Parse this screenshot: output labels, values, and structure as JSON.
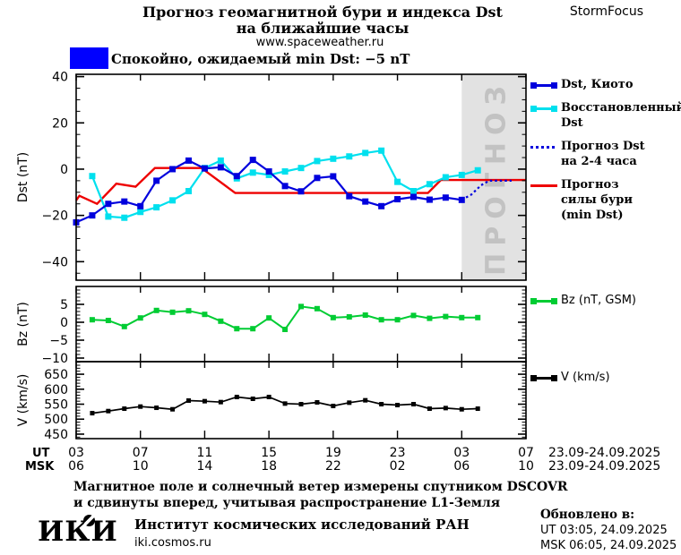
{
  "header": {
    "title_line1": "Прогноз геомагнитной бури и индекса Dst",
    "title_line2": "на ближайшие часы",
    "url": "www.spaceweather.ru",
    "brand": "StormFocus"
  },
  "status": {
    "flag_color": "#0000ff",
    "label": "Спокойно, ожидаемый min Dst: −5 nT"
  },
  "forecast_region": {
    "label": "ПРОГНОЗ"
  },
  "chart_data": [
    {
      "type": "line",
      "panel": "dst",
      "ylabel": "Dst (nT)",
      "ylim": [
        -48,
        41
      ],
      "yticks": [
        40,
        20,
        0,
        -20,
        -40
      ],
      "y_minor": 5,
      "xlim": [
        3,
        31
      ],
      "xtick_hours": [
        3,
        7,
        11,
        15,
        19,
        23,
        27,
        31
      ],
      "grid": false,
      "legend_position": "right",
      "forecast": {
        "from": 27,
        "to": 31,
        "fill": "#e2e2e2",
        "label": "ПРОГНОЗ",
        "label_color": "#c2c2c2"
      },
      "series": [
        {
          "name": "Прогноз силы бури (min Dst)",
          "data_name": "storm-forecast-line",
          "color": "#ee0000",
          "width": 2.4,
          "marker": false,
          "x": [
            3,
            3.2,
            4.3,
            5.5,
            6.7,
            7.9,
            10.8,
            12.9,
            24.9,
            25.7,
            31
          ],
          "values": [
            -13.5,
            -11.5,
            -15,
            -6.3,
            -7.6,
            0.5,
            0.5,
            -10.3,
            -10.3,
            -4.7,
            -4.7
          ]
        },
        {
          "name": "Восстановленный Dst",
          "data_name": "restored-dst-series",
          "color": "#00e0ee",
          "width": 2.2,
          "marker": true,
          "x": [
            4,
            5,
            6,
            7,
            8,
            9,
            10,
            11,
            12,
            13,
            14,
            15,
            16,
            17,
            18,
            19,
            20,
            21,
            22,
            23,
            24,
            25,
            26,
            27,
            28
          ],
          "values": [
            -3,
            -20.5,
            -21,
            -18.5,
            -16.5,
            -13.5,
            -9.5,
            0.5,
            3.7,
            -4,
            -1.5,
            -2.5,
            -1,
            0.5,
            3.5,
            4.5,
            5.5,
            7,
            8,
            -5.5,
            -9.5,
            -6.5,
            -3.5,
            -2.5,
            -0.5
          ]
        },
        {
          "name": "Dst, Киото",
          "data_name": "dst-kyoto-series",
          "color": "#0000dd",
          "width": 2.2,
          "marker": true,
          "x": [
            3,
            4,
            5,
            6,
            7,
            8,
            9,
            10,
            11,
            12,
            13,
            14,
            15,
            16,
            17,
            18,
            19,
            20,
            21,
            22,
            23,
            24,
            25,
            26,
            27
          ],
          "values": [
            -23,
            -20,
            -15,
            -14,
            -16,
            -5,
            0,
            3.7,
            0.3,
            0.8,
            -3,
            4,
            -1,
            -7.3,
            -9.6,
            -3.8,
            -3.1,
            -11.7,
            -14,
            -16,
            -13,
            -12,
            -13.2,
            -12.3,
            -13.3
          ]
        },
        {
          "name": "Прогноз Dst на 2-4 часа",
          "data_name": "dst-forecast-dotted",
          "color": "#0000dd",
          "width": 2.2,
          "marker": false,
          "style": "dotted",
          "x": [
            27,
            27.6,
            28.2,
            28.7,
            30.1
          ],
          "values": [
            -13.3,
            -11,
            -7,
            -5,
            -5
          ]
        }
      ]
    },
    {
      "type": "line",
      "panel": "bz",
      "ylabel": "Bz (nT)",
      "ylim": [
        -11,
        10
      ],
      "yticks": [
        5,
        0,
        -5,
        -10
      ],
      "y_minor": 1,
      "xlim": [
        3,
        31
      ],
      "grid": false,
      "series": [
        {
          "name": "Bz (nT, GSM)",
          "data_name": "bz-series",
          "color": "#00cc33",
          "width": 2,
          "marker": true,
          "x": [
            4,
            5,
            6,
            7,
            8,
            9,
            10,
            11,
            12,
            13,
            14,
            15,
            16,
            17,
            18,
            19,
            20,
            21,
            22,
            23,
            24,
            25,
            26,
            27,
            28
          ],
          "values": [
            0.7,
            0.5,
            -1.2,
            1.2,
            3.3,
            2.8,
            3.2,
            2.2,
            0.3,
            -1.8,
            -1.8,
            1.2,
            -2,
            4.4,
            3.8,
            1.3,
            1.5,
            2,
            0.7,
            0.7,
            1.9,
            1.1,
            1.6,
            1.3,
            1.3
          ]
        }
      ]
    },
    {
      "type": "line",
      "panel": "v",
      "ylabel": "V (km/s)",
      "ylim": [
        435,
        692
      ],
      "yticks": [
        650,
        600,
        550,
        500,
        450
      ],
      "y_minor": 10,
      "xlim": [
        3,
        31
      ],
      "grid": false,
      "series": [
        {
          "name": "V (km/s)",
          "data_name": "v-series",
          "color": "#000000",
          "width": 1.7,
          "marker": true,
          "x": [
            4,
            5,
            6,
            7,
            8,
            9,
            10,
            11,
            12,
            13,
            14,
            15,
            16,
            17,
            18,
            19,
            20,
            21,
            22,
            23,
            24,
            25,
            26,
            27,
            28
          ],
          "values": [
            520,
            527,
            535,
            542,
            538,
            533,
            562,
            560,
            557,
            574,
            568,
            574,
            552,
            550,
            556,
            544,
            555,
            563,
            550,
            547,
            550,
            535,
            537,
            533,
            535
          ]
        }
      ]
    }
  ],
  "xaxis": {
    "row1_label": "UT",
    "row2_label": "MSK",
    "row1_values": [
      "03",
      "07",
      "11",
      "15",
      "19",
      "23",
      "03",
      "07"
    ],
    "row2_values": [
      "06",
      "10",
      "14",
      "18",
      "22",
      "02",
      "06",
      "10"
    ],
    "row1_date": "23.09-24.09.2025",
    "row2_date": "23.09-24.09.2025"
  },
  "legend_main": {
    "items": [
      {
        "color": "#0000dd",
        "style": "line-squares",
        "lines": [
          "Dst, Киото"
        ]
      },
      {
        "color": "#00e0ee",
        "style": "line-squares",
        "lines": [
          "Восстановленный",
          "Dst"
        ]
      },
      {
        "color": "#0000dd",
        "style": "dotted",
        "lines": [
          "Прогноз Dst",
          "на 2-4 часа"
        ]
      },
      {
        "color": "#ee0000",
        "style": "line",
        "lines": [
          "Прогноз",
          "силы бури",
          "(min Dst)"
        ]
      }
    ]
  },
  "legend_bz": {
    "color": "#00cc33",
    "label": "Bz (nT, GSM)"
  },
  "legend_v": {
    "color": "#000000",
    "label": "V (km/s)"
  },
  "footer": {
    "note_line1": "Магнитное поле и солнечный ветер измерены спутником DSCOVR",
    "note_line2": "и сдвинуты вперед, учитывая распространение L1-Земля",
    "logo_i1": "И",
    "logo_k": "К",
    "logo_i2": "И",
    "institute": "Институт космических исследований РАН",
    "site": "iki.cosmos.ru",
    "updated_label": "Обновлено в:",
    "updated_ut": "UT  03:05, 24.09.2025",
    "updated_msk": "MSK 06:05, 24.09.2025"
  }
}
